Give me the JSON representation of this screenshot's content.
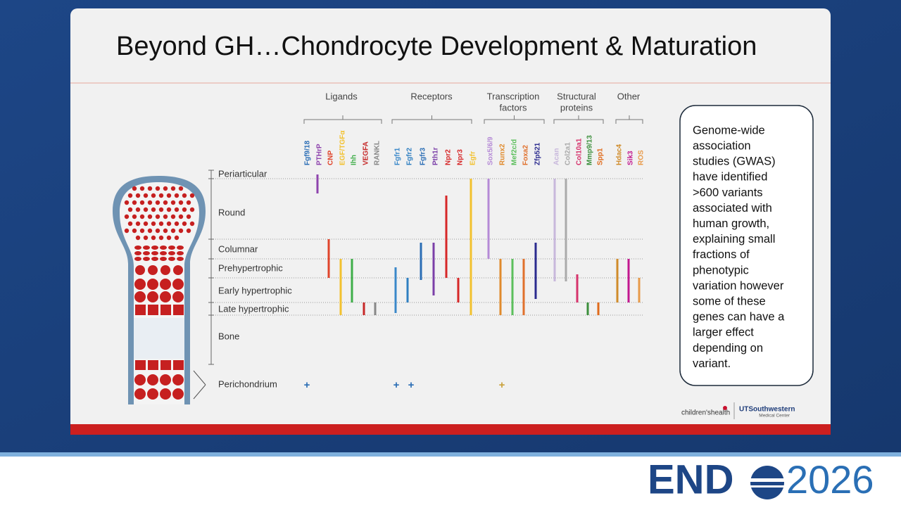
{
  "slide": {
    "title": "Beyond GH…Chondrocyte Development & Maturation",
    "groups": [
      {
        "lines": [
          "Ligands"
        ]
      },
      {
        "lines": [
          "Receptors"
        ]
      },
      {
        "lines": [
          "Transcription",
          "factors"
        ]
      },
      {
        "lines": [
          "Structural",
          "proteins"
        ]
      },
      {
        "lines": [
          "Other"
        ]
      }
    ],
    "genes": [
      "Fgf9/18",
      "PTHrP",
      "CNP",
      "EGF/TGFα",
      "Ihh",
      "VEGFA",
      "RANKL",
      "Fgfr1",
      "Fgfr2",
      "Fgfr3",
      "Pth1r",
      "Npr2",
      "Npr3",
      "Egfr",
      "Sox5/6/9",
      "Runx2",
      "Mef2c/d",
      "Foxa2",
      "Zfp521",
      "Acan",
      "Col2a1",
      "Col10a1",
      "Mmp9/13",
      "Spp1",
      "Hdac4",
      "Sik3",
      "ROS"
    ],
    "zones": [
      "Periarticular",
      "Round",
      "Columnar",
      "Prehypertrophic",
      "Early hypertrophic",
      "Late hypertrophic",
      "Bone",
      "Perichondrium"
    ],
    "plus_sign": "+",
    "callout": [
      "Genome-wide",
      "association",
      "studies (GWAS)",
      "have identified",
      ">600 variants",
      "associated with",
      "human growth,",
      "explaining small",
      "fractions of",
      "phenotypic",
      "variation however",
      "some of these",
      "genes can have a",
      "larger effect",
      "depending on",
      "variant."
    ],
    "logos": {
      "childrens": "children'shealth",
      "ut": "UTSouthwestern",
      "ut_sub": "Medical Center"
    }
  },
  "footer": {
    "brand": "END",
    "year": "2026"
  }
}
